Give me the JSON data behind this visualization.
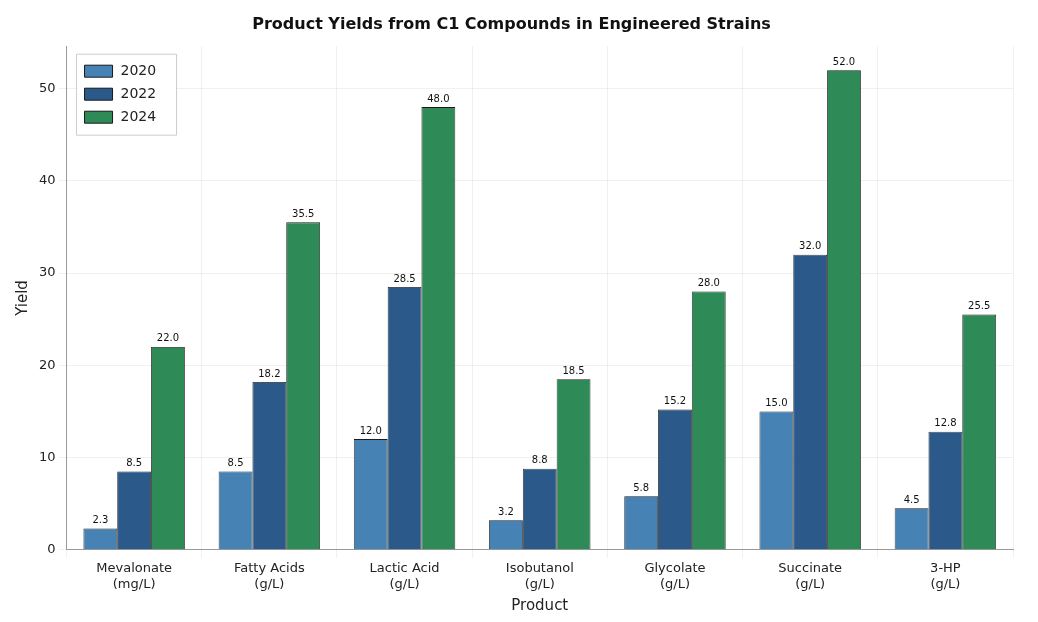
{
  "chart_data": {
    "type": "bar",
    "title": "Product Yields from C1 Compounds in Engineered Strains",
    "xlabel": "Product",
    "ylabel": "Yield",
    "categories": [
      "Mevalonate\n(mg/L)",
      "Fatty Acids\n(g/L)",
      "Lactic Acid\n(g/L)",
      "Isobutanol\n(g/L)",
      "Glycolate\n(g/L)",
      "Succinate\n(g/L)",
      "3-HP\n(g/L)"
    ],
    "series": [
      {
        "name": "2020",
        "color": "#4682b4",
        "values": [
          2.3,
          8.5,
          12.0,
          3.2,
          5.8,
          15.0,
          4.5
        ],
        "value_labels": [
          "2.3",
          "8.5",
          "12.0",
          "3.2",
          "5.8",
          "15.0",
          "4.5"
        ]
      },
      {
        "name": "2022",
        "color": "#2b5a8a",
        "values": [
          8.5,
          18.2,
          28.5,
          8.8,
          15.2,
          32.0,
          12.8
        ],
        "value_labels": [
          "8.5",
          "18.2",
          "28.5",
          "8.8",
          "15.2",
          "32.0",
          "12.8"
        ]
      },
      {
        "name": "2024",
        "color": "#2e8b57",
        "values": [
          22.0,
          35.5,
          48.0,
          18.5,
          28.0,
          52.0,
          25.5
        ],
        "value_labels": [
          "22.0",
          "35.5",
          "48.0",
          "18.5",
          "28.0",
          "52.0",
          "25.5"
        ]
      }
    ],
    "ylim": [
      0,
      54.6
    ],
    "yticks": [
      0,
      10,
      20,
      30,
      40,
      50
    ],
    "grid": true,
    "legend": "top left"
  }
}
